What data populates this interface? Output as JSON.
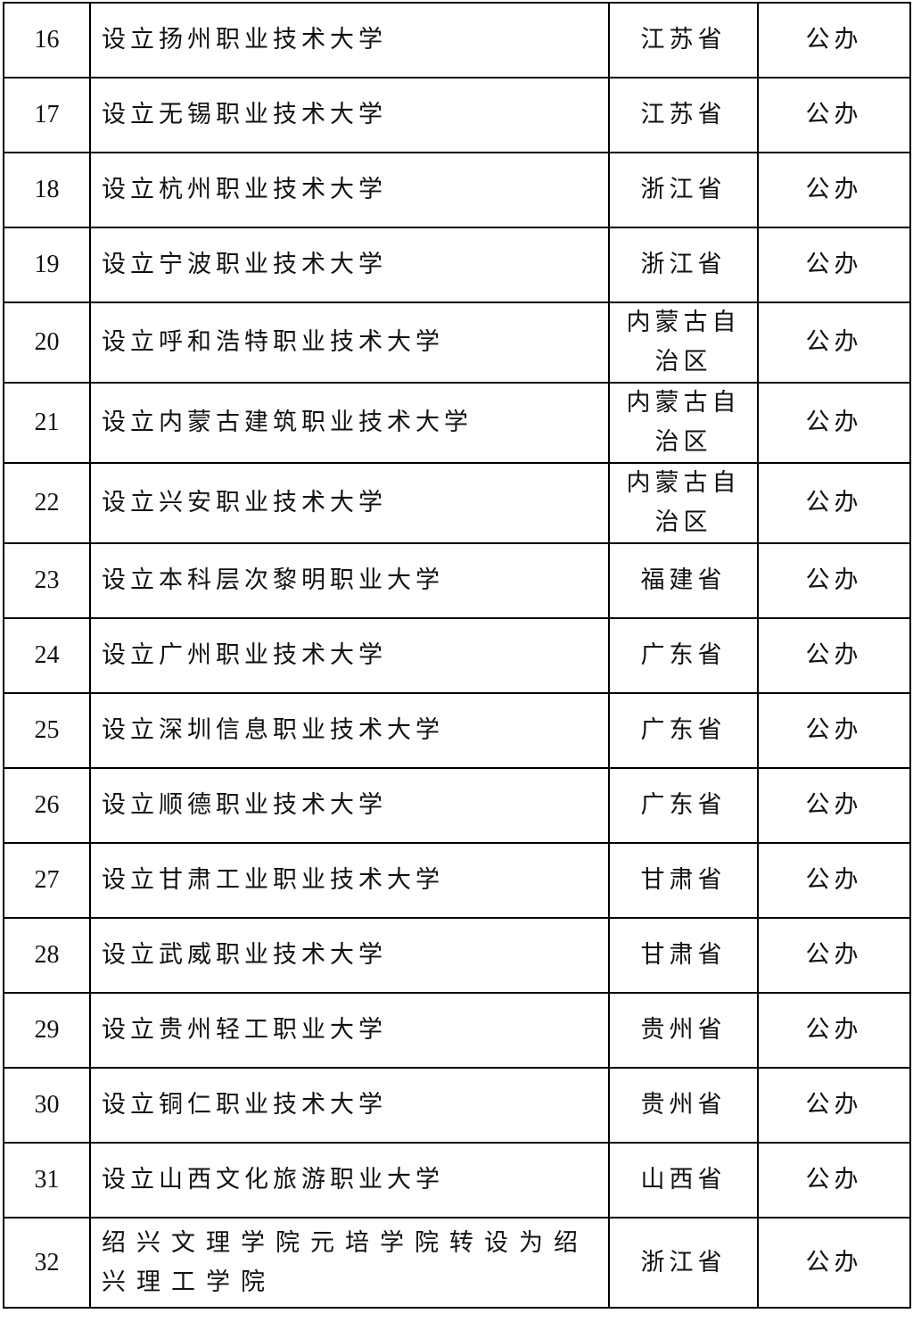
{
  "table": {
    "rows": [
      [
        "16",
        "设立扬州职业技术大学",
        "江苏省",
        "公办"
      ],
      [
        "17",
        "设立无锡职业技术大学",
        "江苏省",
        "公办"
      ],
      [
        "18",
        "设立杭州职业技术大学",
        "浙江省",
        "公办"
      ],
      [
        "19",
        "设立宁波职业技术大学",
        "浙江省",
        "公办"
      ],
      [
        "20",
        "设立呼和浩特职业技术大学",
        "内蒙古自治区",
        "公办"
      ],
      [
        "21",
        "设立内蒙古建筑职业技术大学",
        "内蒙古自治区",
        "公办"
      ],
      [
        "22",
        "设立兴安职业技术大学",
        "内蒙古自治区",
        "公办"
      ],
      [
        "23",
        "设立本科层次黎明职业大学",
        "福建省",
        "公办"
      ],
      [
        "24",
        "设立广州职业技术大学",
        "广东省",
        "公办"
      ],
      [
        "25",
        "设立深圳信息职业技术大学",
        "广东省",
        "公办"
      ],
      [
        "26",
        "设立顺德职业技术大学",
        "广东省",
        "公办"
      ],
      [
        "27",
        "设立甘肃工业职业技术大学",
        "甘肃省",
        "公办"
      ],
      [
        "28",
        "设立武威职业技术大学",
        "甘肃省",
        "公办"
      ],
      [
        "29",
        "设立贵州轻工职业大学",
        "贵州省",
        "公办"
      ],
      [
        "30",
        "设立铜仁职业技术大学",
        "贵州省",
        "公办"
      ],
      [
        "31",
        "设立山西文化旅游职业大学",
        "山西省",
        "公办"
      ],
      [
        "32",
        "绍兴文理学院元培学院转设为绍兴理工学院",
        "浙江省",
        "公办"
      ]
    ]
  }
}
